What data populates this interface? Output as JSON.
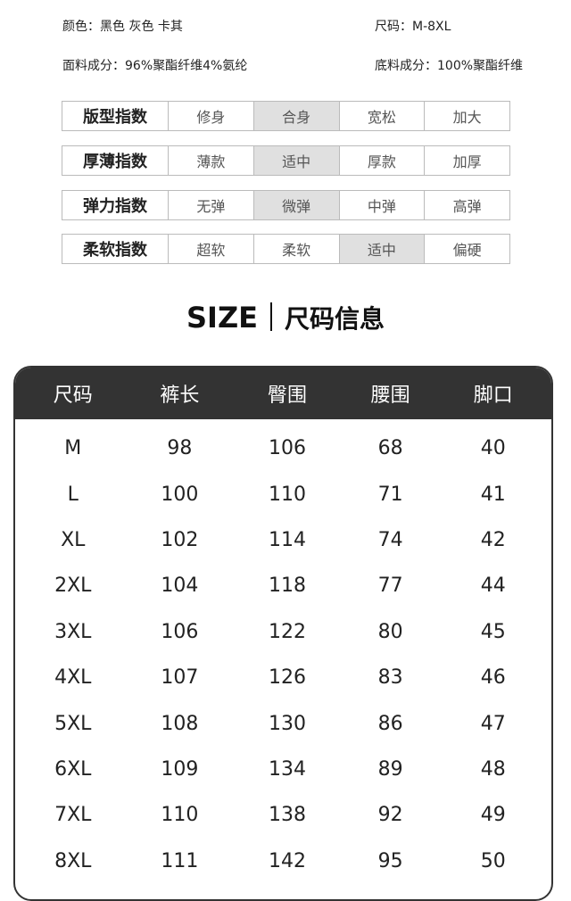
{
  "info": {
    "color": "颜色：黑色 灰色 卡其",
    "size": "尺码：M-8XL",
    "fabric": "面料成分：96%聚酯纤维4%氨纶",
    "lining": "底料成分：100%聚酯纤维"
  },
  "indices": [
    {
      "label": "版型指数",
      "options": [
        "修身",
        "合身",
        "宽松",
        "加大"
      ],
      "selected": 1
    },
    {
      "label": "厚薄指数",
      "options": [
        "薄款",
        "适中",
        "厚款",
        "加厚"
      ],
      "selected": 1
    },
    {
      "label": "弹力指数",
      "options": [
        "无弹",
        "微弹",
        "中弹",
        "高弹"
      ],
      "selected": 1
    },
    {
      "label": "柔软指数",
      "options": [
        "超软",
        "柔软",
        "适中",
        "偏硬"
      ],
      "selected": 2
    }
  ],
  "size_title": {
    "en": "SIZE",
    "cn": "尺码信息"
  },
  "size_table": {
    "headers": [
      "尺码",
      "裤长",
      "臀围",
      "腰围",
      "脚口"
    ],
    "rows": [
      [
        "M",
        "98",
        "106",
        "68",
        "40"
      ],
      [
        "L",
        "100",
        "110",
        "71",
        "41"
      ],
      [
        "XL",
        "102",
        "114",
        "74",
        "42"
      ],
      [
        "2XL",
        "104",
        "118",
        "77",
        "44"
      ],
      [
        "3XL",
        "106",
        "122",
        "80",
        "45"
      ],
      [
        "4XL",
        "107",
        "126",
        "83",
        "46"
      ],
      [
        "5XL",
        "108",
        "130",
        "86",
        "47"
      ],
      [
        "6XL",
        "109",
        "134",
        "89",
        "48"
      ],
      [
        "7XL",
        "110",
        "138",
        "92",
        "49"
      ],
      [
        "8XL",
        "111",
        "142",
        "95",
        "50"
      ]
    ]
  },
  "colors": {
    "header_bg": "#333333",
    "selected_bg": "#e0e0e0"
  }
}
